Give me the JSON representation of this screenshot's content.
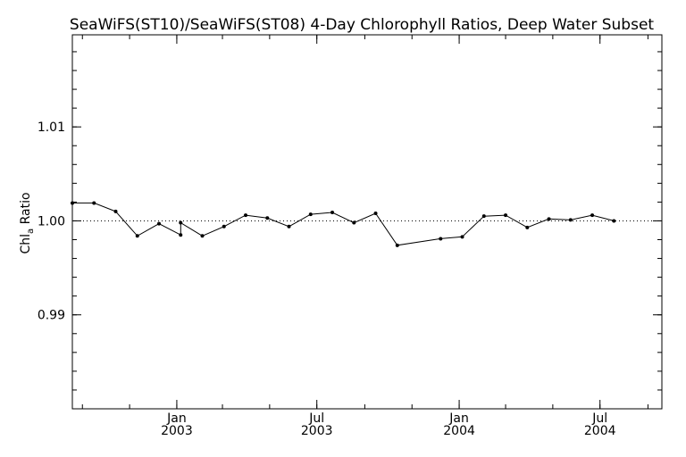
{
  "chart_data": {
    "type": "line",
    "title": "SeaWiFS(ST10)/SeaWiFS(ST08) 4-Day Chlorophyll Ratios, Deep Water Subset",
    "xlabel": "",
    "ylabel": "Chl",
    "ylabel_subscript": "a",
    "ylabel_suffix": " Ratio",
    "ylim": [
      0.98,
      1.0198
    ],
    "xlim": [
      "2002-08-19",
      "2004-09-19"
    ],
    "y_ticks": [
      {
        "value": 0.99,
        "label": "0.99"
      },
      {
        "value": 1.0,
        "label": "1.00"
      },
      {
        "value": 1.01,
        "label": "1.01"
      }
    ],
    "x_ticks": [
      {
        "date": "2003-01-01",
        "month": "Jan",
        "year": "2003"
      },
      {
        "date": "2003-07-01",
        "month": "Jul",
        "year": "2003"
      },
      {
        "date": "2004-01-01",
        "month": "Jan",
        "year": "2004"
      },
      {
        "date": "2004-07-01",
        "month": "Jul",
        "year": "2004"
      }
    ],
    "reference_line": 1.0,
    "grid": false,
    "series": [
      {
        "color": "#000000",
        "points": [
          {
            "x": "2002-08-19",
            "y": 1.0019
          },
          {
            "x": "2002-09-16",
            "y": 1.0019
          },
          {
            "x": "2002-10-14",
            "y": 1.001
          },
          {
            "x": "2002-11-11",
            "y": 0.9984
          },
          {
            "x": "2002-12-09",
            "y": 0.9997
          },
          {
            "x": "2003-01-06",
            "y": 0.9985
          },
          {
            "x": "2003-01-06",
            "y": 0.9998
          },
          {
            "x": "2003-02-03",
            "y": 0.9984
          },
          {
            "x": "2003-03-03",
            "y": 0.9994
          },
          {
            "x": "2003-03-31",
            "y": 1.0006
          },
          {
            "x": "2003-04-28",
            "y": 1.0003
          },
          {
            "x": "2003-05-26",
            "y": 0.9994
          },
          {
            "x": "2003-06-23",
            "y": 1.0007
          },
          {
            "x": "2003-07-21",
            "y": 1.0009
          },
          {
            "x": "2003-08-18",
            "y": 0.9998
          },
          {
            "x": "2003-09-15",
            "y": 1.0008
          },
          {
            "x": "2003-10-13",
            "y": 0.9974
          },
          {
            "x": "2003-12-08",
            "y": 0.9981
          },
          {
            "x": "2004-01-05",
            "y": 0.9983
          },
          {
            "x": "2004-02-02",
            "y": 1.0005
          },
          {
            "x": "2004-03-01",
            "y": 1.0006
          },
          {
            "x": "2004-03-29",
            "y": 0.9993
          },
          {
            "x": "2004-04-26",
            "y": 1.0002
          },
          {
            "x": "2004-05-24",
            "y": 1.0001
          },
          {
            "x": "2004-06-21",
            "y": 1.0006
          },
          {
            "x": "2004-07-19",
            "y": 1.0
          }
        ]
      }
    ]
  }
}
